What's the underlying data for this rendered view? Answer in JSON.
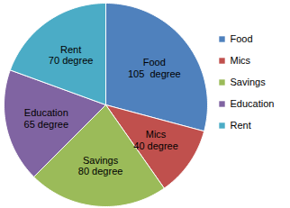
{
  "chart_data": {
    "type": "pie",
    "categories": [
      "Food",
      "Mics",
      "Savings",
      "Education",
      "Rent"
    ],
    "values": [
      105,
      40,
      80,
      65,
      70
    ],
    "value_labels": [
      "105  degree",
      "40 degree",
      "80 degree",
      "65 degree",
      "70 degree"
    ],
    "colors": [
      "#4f81bd",
      "#c0504d",
      "#9bbb59",
      "#8064a2",
      "#4bacc6"
    ],
    "data_labels": true,
    "legend": "right"
  }
}
